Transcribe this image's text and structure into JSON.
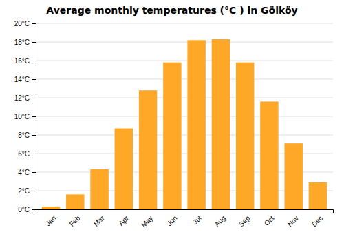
{
  "chart_data": {
    "type": "bar",
    "title": "Average monthly temperatures (°C ) in Gölköy",
    "categories": [
      "Jan",
      "Feb",
      "Mar",
      "Apr",
      "May",
      "Jun",
      "Jul",
      "Aug",
      "Sep",
      "Oct",
      "Nov",
      "Dec"
    ],
    "values": [
      0.3,
      1.6,
      4.3,
      8.7,
      12.8,
      15.8,
      18.2,
      18.3,
      15.8,
      11.6,
      7.1,
      2.9
    ],
    "color": "#FFA726",
    "ylim": [
      0,
      20
    ],
    "yticks": [
      {
        "value": 0,
        "label": "0°C"
      },
      {
        "value": 2,
        "label": "2°C"
      },
      {
        "value": 4,
        "label": "4°C"
      },
      {
        "value": 6,
        "label": "6°C"
      },
      {
        "value": 8,
        "label": "8°C"
      },
      {
        "value": 10,
        "label": "10°C"
      },
      {
        "value": 12,
        "label": "12°C"
      },
      {
        "value": 14,
        "label": "14°C"
      },
      {
        "value": 16,
        "label": "16°C"
      },
      {
        "value": 18,
        "label": "18°C"
      },
      {
        "value": 20,
        "label": "20°C"
      }
    ],
    "grid": true
  }
}
